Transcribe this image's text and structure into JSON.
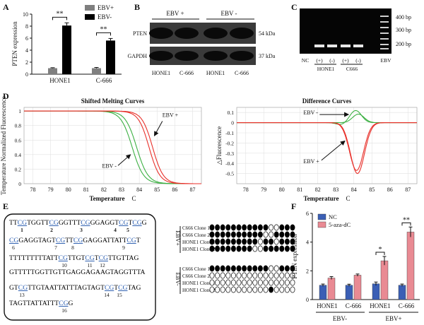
{
  "figure": {
    "panel_labels": [
      "A",
      "B",
      "C",
      "D",
      "E",
      "F"
    ]
  },
  "colors": {
    "ebv_pos_bar": "#7f7f7f",
    "ebv_neg_bar": "#000000",
    "nc_bar": "#3b5fb5",
    "aza_bar": "#e98a93",
    "melt_green": "#3cb043",
    "melt_red": "#e8312b",
    "cpg_blue": "#2a5db0"
  },
  "panelA": {
    "chart_data": {
      "type": "bar",
      "ylabel": "PTEN expression",
      "categories": [
        "HONE1",
        "C-666"
      ],
      "series": [
        {
          "name": "EBV+",
          "values": [
            1.0,
            1.0
          ],
          "errors": [
            0.08,
            0.12
          ]
        },
        {
          "name": "EBV-",
          "values": [
            8.1,
            5.6
          ],
          "errors": [
            0.45,
            0.35
          ]
        }
      ],
      "ylim": [
        0,
        10
      ],
      "yticks": [
        "0",
        "2",
        "4",
        "6",
        "8",
        "10"
      ],
      "significance": [
        "**",
        "**"
      ]
    }
  },
  "panelB": {
    "headers": [
      "EBV +",
      "EBV -"
    ],
    "rows": [
      {
        "label": "PTEN",
        "size": "54 kDa"
      },
      {
        "label": "GAPDH",
        "size": "37 kDa"
      }
    ],
    "lanes": [
      "HONE1",
      "C-666",
      "HONE1",
      "C-666"
    ]
  },
  "panelC": {
    "markers": [
      "400 bp",
      "300 bp",
      "200 bp"
    ],
    "lanes": [
      "NC",
      "(+)",
      "(-)",
      "(+)",
      "(-)",
      "EBV"
    ],
    "groups": [
      "HONE1",
      "C666"
    ]
  },
  "panelD": {
    "left": {
      "chart_data": {
        "type": "line",
        "title": "Shifted Melting Curves",
        "xlabel": "Temperature",
        "xlabel_unit": "C",
        "ylabel": "Temperature Normalized Fluorescence",
        "xlim": [
          77.5,
          87.5
        ],
        "ylim": [
          0,
          1.05
        ],
        "xticks": [
          "78",
          "79",
          "80",
          "81",
          "82",
          "83",
          "84",
          "85",
          "86",
          "87"
        ],
        "yticks": [
          "0",
          "0.2",
          "0.4",
          "0.6",
          "0.8",
          "1"
        ],
        "series": [
          {
            "name": "EBV-",
            "color": "green",
            "midpoints": [
              83.6,
              83.85
            ]
          },
          {
            "name": "EBV+",
            "color": "red",
            "midpoints": [
              84.55,
              84.75
            ]
          }
        ],
        "annotations": [
          "EBV +",
          "EBV -"
        ]
      }
    },
    "right": {
      "chart_data": {
        "type": "line",
        "title": "Difference Curves",
        "xlabel": "Temperature",
        "xlabel_unit": "C",
        "ylabel": "△Fluorescence",
        "xlim": [
          77.5,
          87.5
        ],
        "ylim": [
          -0.6,
          0.15
        ],
        "xticks": [
          "78",
          "79",
          "80",
          "81",
          "82",
          "83",
          "84",
          "85",
          "86",
          "87"
        ],
        "yticks": [
          "0.1",
          "0",
          "-0.1",
          "-0.2",
          "-0.3",
          "-0.4",
          "-0.5"
        ],
        "series": [
          {
            "name": "EBV-",
            "color": "green",
            "peak": 0.12,
            "peak_x": 84.1
          },
          {
            "name": "EBV+",
            "color": "red",
            "trough": -0.5,
            "trough_x": 84.2
          }
        ],
        "annotations": [
          "EBV -",
          "EBV +"
        ]
      }
    }
  },
  "panelE": {
    "sequence_lines": [
      {
        "segments": [
          [
            "TT",
            false
          ],
          [
            "CG",
            true
          ],
          [
            "TGGTT",
            false
          ],
          [
            "CG",
            true
          ],
          [
            "GGTTT",
            false
          ],
          [
            "CG",
            true
          ],
          [
            "GGAGGT",
            false
          ],
          [
            "CG",
            true
          ],
          [
            "T",
            false
          ],
          [
            "CG",
            true
          ],
          [
            "G",
            false
          ]
        ]
      },
      {
        "segments": [
          [
            "CG",
            true
          ],
          [
            "GAGGTAGT",
            false
          ],
          [
            "CG",
            true
          ],
          [
            "TT",
            false
          ],
          [
            "CG",
            true
          ],
          [
            "GAGGATTATT",
            false
          ],
          [
            "CG",
            true
          ],
          [
            "T",
            false
          ]
        ]
      },
      {
        "segments": [
          [
            "TTTTTTTTTATT",
            false
          ],
          [
            "CG",
            true
          ],
          [
            "TTGT",
            false
          ],
          [
            "CG",
            true
          ],
          [
            "T",
            false
          ],
          [
            "CG",
            true
          ],
          [
            "TTGTTAG",
            false
          ]
        ]
      },
      {
        "segments": [
          [
            "GTTTTTGGTTGTTGAGGAGAAGTAGGTTTA",
            false
          ]
        ]
      },
      {
        "segments": [
          [
            "GT",
            false
          ],
          [
            "CG",
            true
          ],
          [
            "TTGTAATTATTTAGTAGT",
            false
          ],
          [
            "CG",
            true
          ],
          [
            "T",
            false
          ],
          [
            "CG",
            true
          ],
          [
            "TAG",
            false
          ]
        ]
      },
      {
        "segments": [
          [
            "TAGTTATTATTT",
            false
          ],
          [
            "CG",
            true
          ],
          [
            "G",
            false
          ]
        ]
      }
    ],
    "site_numbers": [
      "1",
      "2",
      "3",
      "4",
      "5",
      "6",
      "7",
      "8",
      "9",
      "10",
      "11",
      "12",
      "13",
      "14",
      "15",
      "16"
    ],
    "groups": [
      {
        "label": "EBV+",
        "clones": [
          "C666 Clone 1",
          "C666 Clone 2",
          "HONE1 Clone 1",
          "HONE1 Clone 2"
        ],
        "pattern": [
          [
            1,
            1,
            1,
            1,
            1,
            1,
            1,
            1,
            1,
            1,
            1,
            0,
            0,
            1,
            1,
            1
          ],
          [
            1,
            1,
            1,
            1,
            1,
            1,
            1,
            1,
            1,
            1,
            0,
            0,
            1,
            1,
            1,
            1
          ],
          [
            1,
            1,
            1,
            1,
            1,
            1,
            1,
            1,
            1,
            0,
            1,
            1,
            0,
            1,
            1,
            1
          ],
          [
            1,
            1,
            1,
            1,
            1,
            1,
            1,
            1,
            0,
            0,
            1,
            1,
            1,
            1,
            1,
            1
          ]
        ]
      },
      {
        "label": "EBV-",
        "clones": [
          "C666 Clone 1",
          "C666 Clone 2",
          "HONE1 Clone 1",
          "HONE1 Clone 2"
        ],
        "pattern": [
          [
            1,
            1,
            1,
            1,
            1,
            1,
            1,
            1,
            1,
            1,
            1,
            0,
            0,
            1,
            1,
            1
          ],
          [
            0,
            0,
            0,
            0,
            0,
            0,
            0,
            0,
            0,
            0,
            0,
            0,
            0,
            0,
            0,
            0
          ],
          [
            0,
            0,
            0,
            0,
            0,
            0,
            0,
            0,
            0,
            0,
            0,
            0,
            0,
            0,
            0,
            0
          ],
          [
            0,
            0,
            0,
            0,
            0,
            0,
            0,
            0,
            0,
            0,
            0,
            1,
            0,
            0,
            0,
            0
          ]
        ]
      }
    ]
  },
  "panelF": {
    "chart_data": {
      "type": "bar",
      "ylabel": "PTEN expression",
      "categories": [
        "HONE1",
        "C-666",
        "HONE1",
        "C-666"
      ],
      "groups": [
        "EBV-",
        "EBV+"
      ],
      "series": [
        {
          "name": "NC",
          "values": [
            1.0,
            1.0,
            1.1,
            1.0
          ],
          "errors": [
            0.08,
            0.07,
            0.12,
            0.08
          ]
        },
        {
          "name": "5-aza-dC",
          "values": [
            1.5,
            1.7,
            2.7,
            4.7
          ],
          "errors": [
            0.1,
            0.08,
            0.3,
            0.35
          ]
        }
      ],
      "ylim": [
        0,
        6
      ],
      "yticks": [
        "0",
        "2",
        "4",
        "6"
      ],
      "significance": [
        "*",
        "**"
      ]
    }
  }
}
